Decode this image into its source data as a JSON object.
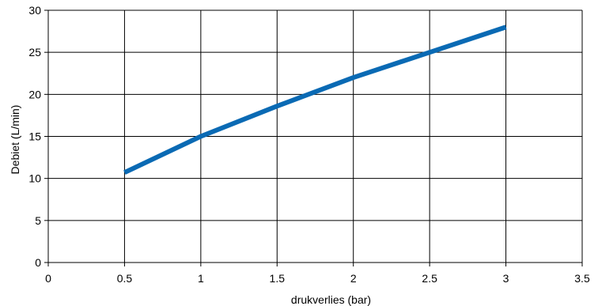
{
  "chart_data": {
    "type": "line",
    "xlabel": "drukverlies (bar)",
    "ylabel": "Debiet (L/min)",
    "xlim": [
      0,
      3.5
    ],
    "ylim": [
      0,
      30
    ],
    "x_ticks": [
      0,
      0.5,
      1,
      1.5,
      2,
      2.5,
      3,
      3.5
    ],
    "x_tick_labels": [
      "0",
      "0.5",
      "1",
      "1.5",
      "2",
      "2.5",
      "3",
      "3.5"
    ],
    "y_ticks": [
      0,
      5,
      10,
      15,
      20,
      25,
      30
    ],
    "y_tick_labels": [
      "0",
      "5",
      "10",
      "15",
      "20",
      "25",
      "30"
    ],
    "grid": true,
    "series": [
      {
        "color": "#0a6ab4",
        "points": [
          {
            "x": 0.5,
            "y": 10.7
          },
          {
            "x": 1.0,
            "y": 15.0
          },
          {
            "x": 1.5,
            "y": 18.6
          },
          {
            "x": 2.0,
            "y": 22.0
          },
          {
            "x": 2.5,
            "y": 25.0
          },
          {
            "x": 3.0,
            "y": 28.0
          }
        ]
      }
    ]
  }
}
